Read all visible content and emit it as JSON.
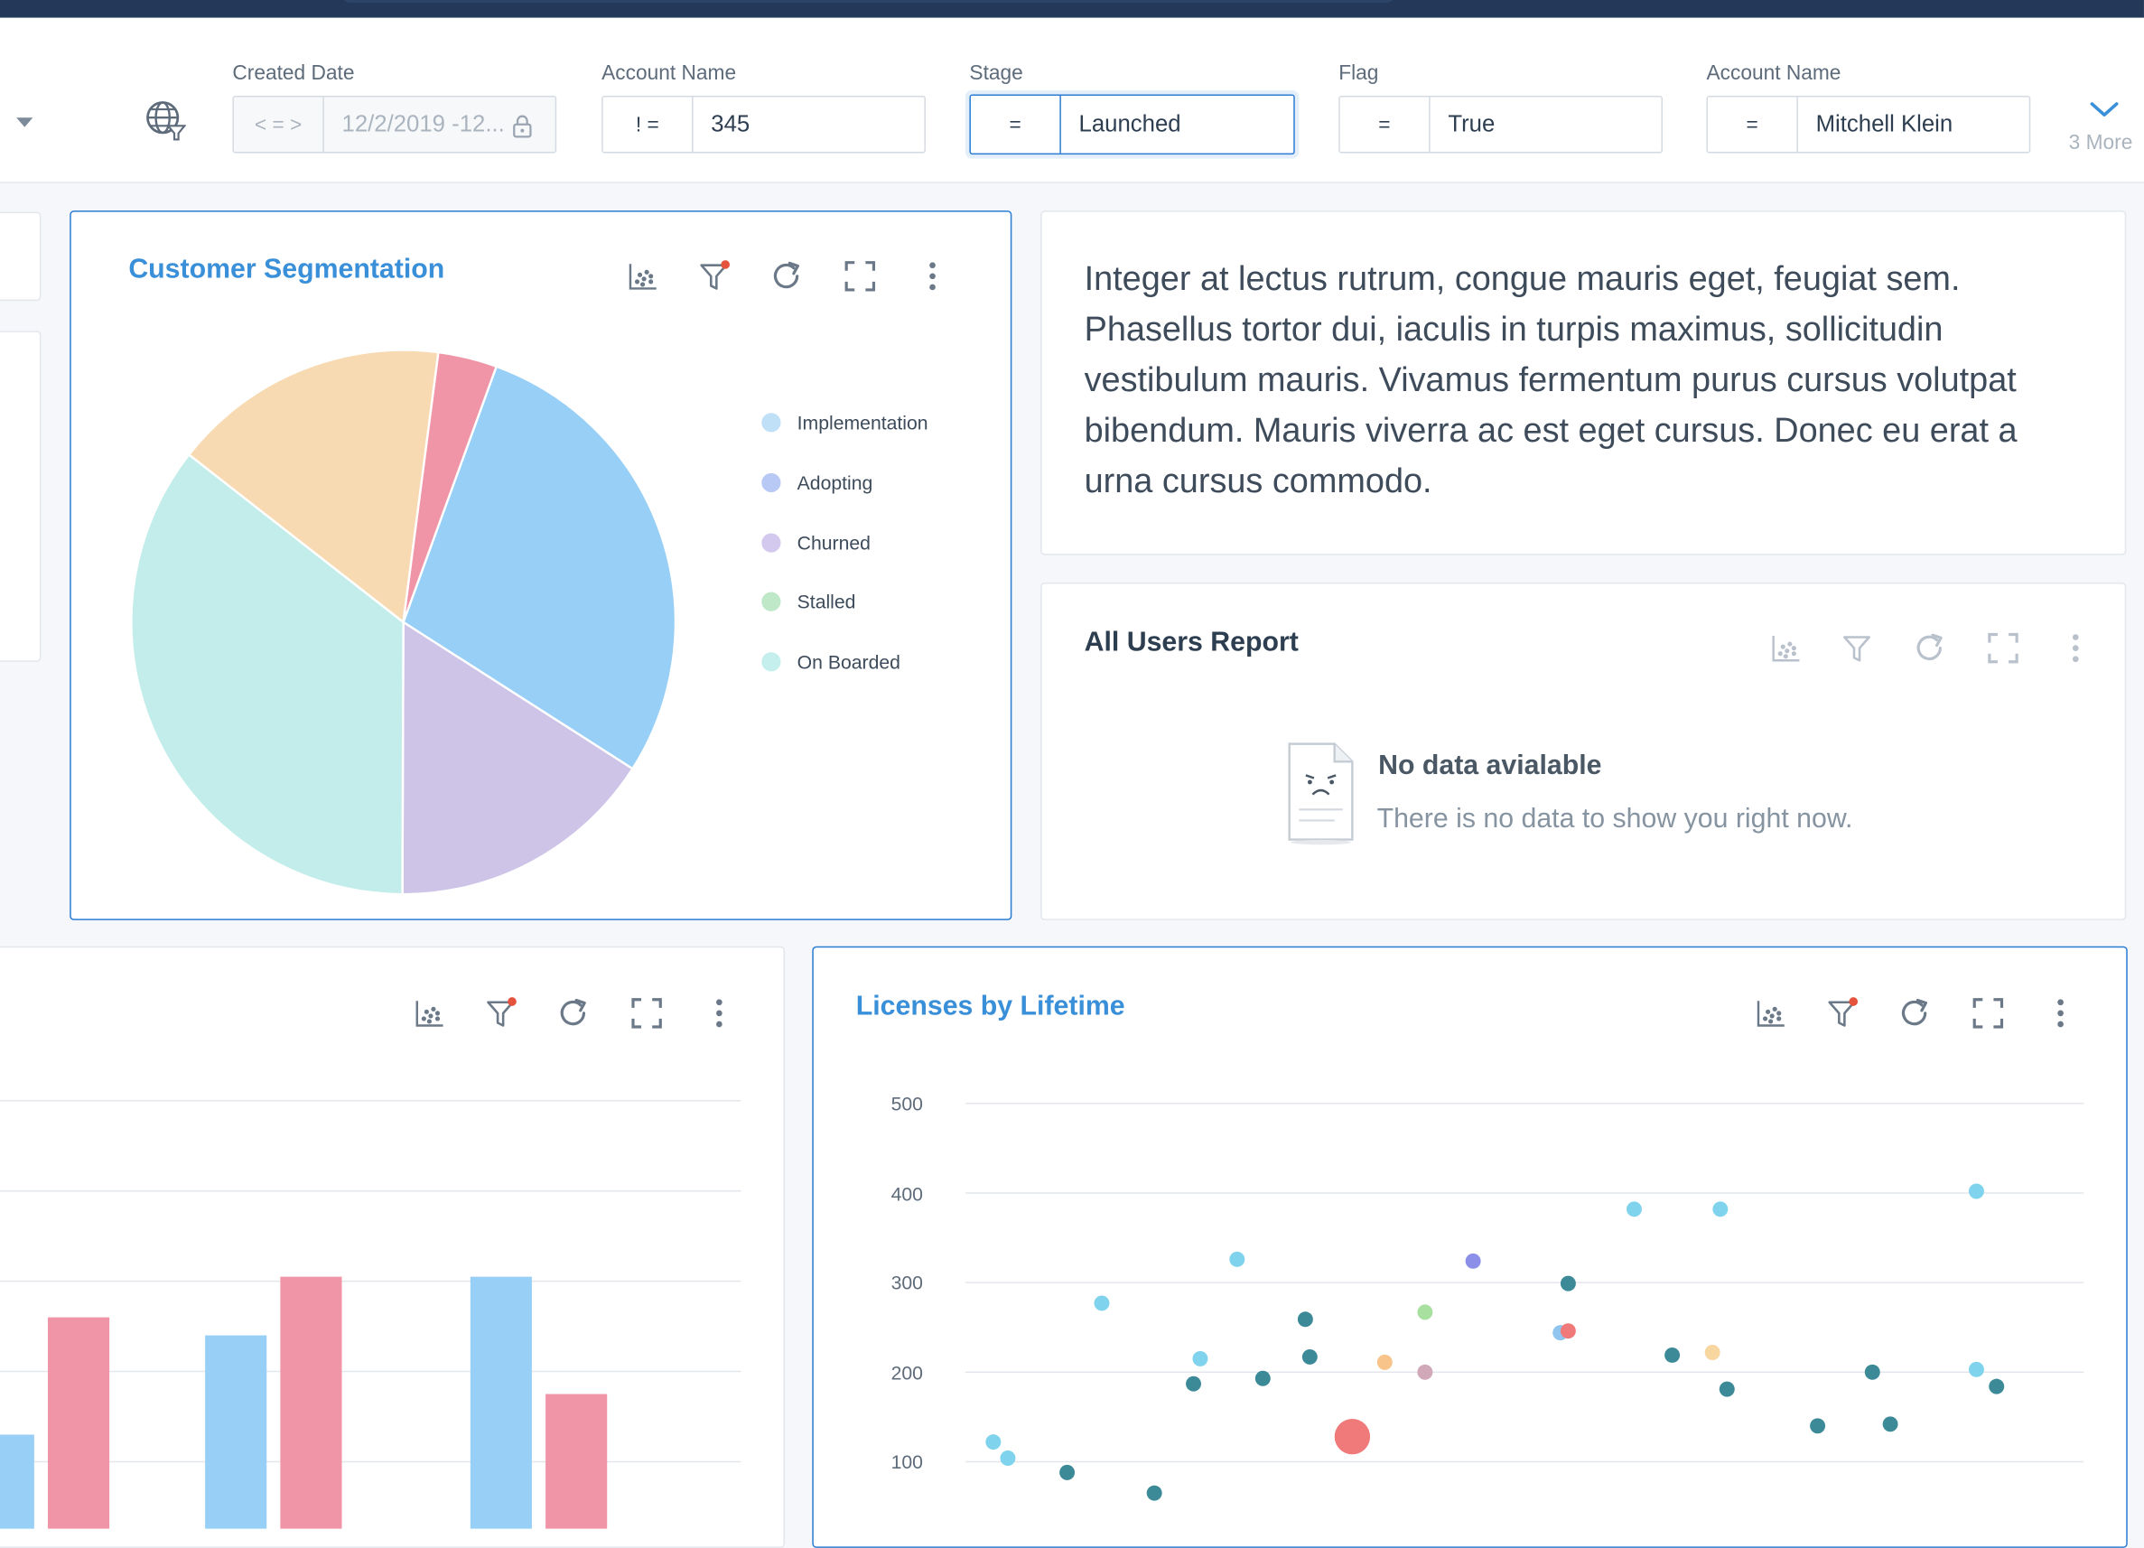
{
  "filters": [
    {
      "label": "Created Date",
      "operator": "< = >",
      "value": "12/2/2019 -12...",
      "disabled": true,
      "locked": true
    },
    {
      "label": "Account Name",
      "operator": "! =",
      "value": "345"
    },
    {
      "label": "Stage",
      "operator": "=",
      "value": "Launched",
      "active": true
    },
    {
      "label": "Flag",
      "operator": "=",
      "value": "True"
    },
    {
      "label": "Account Name",
      "operator": "=",
      "value": "Mitchell Klein"
    }
  ],
  "more_filters": "3 More",
  "segmentation": {
    "title": "Customer Segmentation",
    "legend": [
      {
        "label": "Implementation",
        "color": "#bfe0f7"
      },
      {
        "label": "Adopting",
        "color": "#b8c9f5"
      },
      {
        "label": "Churned",
        "color": "#d3c9ee"
      },
      {
        "label": "Stalled",
        "color": "#bfe8c8"
      },
      {
        "label": "On Boarded",
        "color": "#c4efec"
      }
    ]
  },
  "note": {
    "text": "Integer at lectus rutrum, congue mauris eget, feugiat sem. Phasellus tortor dui, iaculis in turpis maximus, sollicitudin vestibulum mauris. Vivamus fermentum purus cursus volutpat bibendum. Mauris viverra ac est eget cursus. Donec eu erat a urna cursus commodo."
  },
  "users_report": {
    "title": "All Users Report",
    "empty_title": "No data avialable",
    "empty_sub": "There is no data to show you right now."
  },
  "licenses": {
    "title": "Licenses by Lifetime"
  },
  "chart_data": [
    {
      "type": "pie",
      "title": "Customer Segmentation",
      "slices": [
        {
          "value": 28.5,
          "color": "#98cff6"
        },
        {
          "value": 16.0,
          "color": "#cdc4e8"
        },
        {
          "value": 35.5,
          "color": "#c3edea"
        },
        {
          "value": 16.5,
          "color": "#f8dab2"
        },
        {
          "value": 3.5,
          "color": "#f095a8"
        }
      ]
    },
    {
      "type": "bar",
      "title": "",
      "series": [
        {
          "values": [
            130,
            240,
            305
          ],
          "color": "#98cff6"
        },
        {
          "values": [
            260,
            305,
            175
          ],
          "color": "#f095a8"
        }
      ],
      "y_range": [
        0,
        400
      ],
      "grid": true
    },
    {
      "type": "scatter",
      "title": "Licenses by Lifetime",
      "y_ticks": [
        100,
        200,
        300,
        400,
        500
      ],
      "y_range": [
        30,
        500
      ],
      "x_range": [
        0,
        100
      ],
      "grid": true,
      "points": [
        {
          "x": 2.5,
          "y": 122,
          "color": "#7fd3ed"
        },
        {
          "x": 3.8,
          "y": 104,
          "color": "#7fd3ed"
        },
        {
          "x": 9.1,
          "y": 88,
          "color": "#3c8a98"
        },
        {
          "x": 12.2,
          "y": 277,
          "color": "#7fd3ed"
        },
        {
          "x": 16.9,
          "y": 65,
          "color": "#3c8a98"
        },
        {
          "x": 20.4,
          "y": 187,
          "color": "#3c8a98"
        },
        {
          "x": 21.0,
          "y": 215,
          "color": "#7fd3ed"
        },
        {
          "x": 24.3,
          "y": 326,
          "color": "#7fd3ed"
        },
        {
          "x": 26.6,
          "y": 193,
          "color": "#3c8a98"
        },
        {
          "x": 30.4,
          "y": 259,
          "color": "#3c8a98"
        },
        {
          "x": 30.8,
          "y": 217,
          "color": "#3c8a98"
        },
        {
          "x": 34.6,
          "y": 128,
          "color": "#f07a7a",
          "size": 13
        },
        {
          "x": 37.5,
          "y": 211,
          "color": "#f8c48a"
        },
        {
          "x": 41.1,
          "y": 200,
          "color": "#d0a8b8"
        },
        {
          "x": 41.1,
          "y": 267,
          "color": "#a8e0a0"
        },
        {
          "x": 45.4,
          "y": 324,
          "color": "#8c8fe8"
        },
        {
          "x": 53.2,
          "y": 244,
          "color": "#8fc5ee"
        },
        {
          "x": 53.9,
          "y": 246,
          "color": "#f07a7a"
        },
        {
          "x": 53.9,
          "y": 299,
          "color": "#3c8a98"
        },
        {
          "x": 59.8,
          "y": 382,
          "color": "#7fd3ed"
        },
        {
          "x": 63.2,
          "y": 219,
          "color": "#3c8a98"
        },
        {
          "x": 66.8,
          "y": 222,
          "color": "#f8d6a0"
        },
        {
          "x": 67.5,
          "y": 382,
          "color": "#7fd3ed"
        },
        {
          "x": 68.1,
          "y": 181,
          "color": "#3c8a98"
        },
        {
          "x": 76.2,
          "y": 140,
          "color": "#3c8a98"
        },
        {
          "x": 81.1,
          "y": 200,
          "color": "#3c8a98"
        },
        {
          "x": 82.7,
          "y": 142,
          "color": "#3c8a98"
        },
        {
          "x": 90.4,
          "y": 402,
          "color": "#7fd3ed"
        },
        {
          "x": 90.4,
          "y": 203,
          "color": "#7fd3ed"
        },
        {
          "x": 92.2,
          "y": 184,
          "color": "#3c8a98"
        }
      ]
    }
  ]
}
